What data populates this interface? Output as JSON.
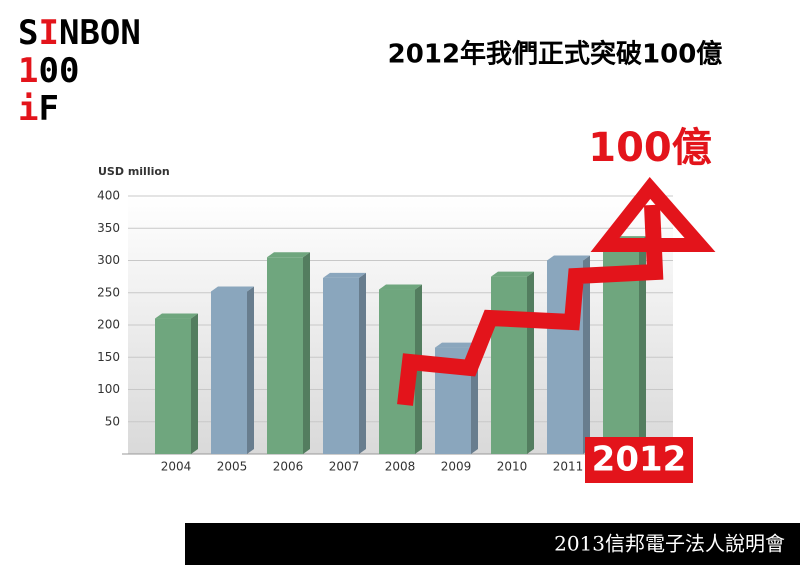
{
  "logo": [
    "S",
    "I",
    "NBON",
    "1",
    "00",
    "i",
    "F"
  ],
  "chart_data": {
    "type": "bar",
    "title": "2012年我們正式突破100億",
    "y_label": "USD million",
    "categories": [
      "2004",
      "2005",
      "2006",
      "2007",
      "2008",
      "2009",
      "2010",
      "2011",
      "2012"
    ],
    "values": [
      210,
      252,
      305,
      273,
      255,
      165,
      275,
      300,
      330
    ],
    "colors": [
      "#6fa67e",
      "#8aa6bd",
      "#6fa67e",
      "#8aa6bd",
      "#6fa67e",
      "#8aa6bd",
      "#6fa67e",
      "#8aa6bd",
      "#6fa67e"
    ],
    "ylim": [
      0,
      400
    ],
    "yticks": [
      50,
      100,
      150,
      200,
      250,
      300,
      350,
      400
    ],
    "grid": true,
    "annotation": "100億",
    "arrow_color": "#e3141b"
  },
  "footer": "2013信邦電子法人說明會"
}
